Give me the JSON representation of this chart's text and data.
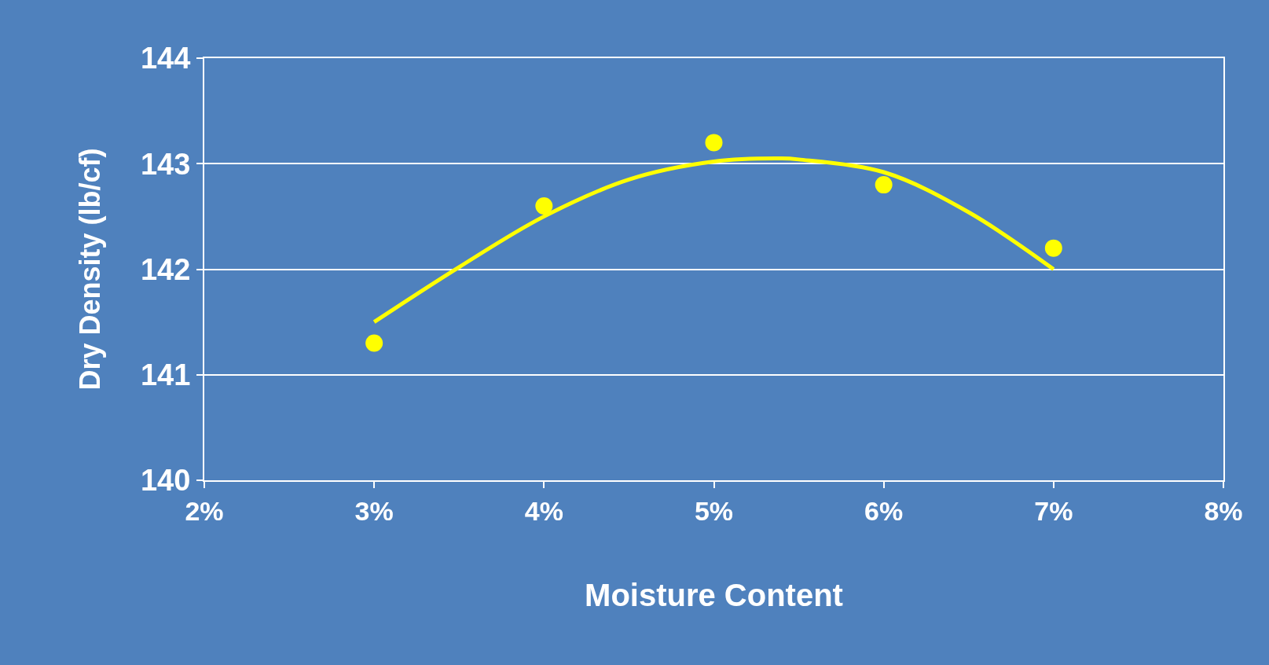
{
  "chart_data": {
    "type": "scatter",
    "xlabel": "Moisture Content",
    "ylabel": "Dry Density (lb/cf)",
    "series": [
      {
        "color": "#ffff00",
        "marker": "circle",
        "x": [
          3,
          4,
          5,
          6,
          7
        ],
        "values": [
          141.3,
          142.6,
          143.2,
          142.8,
          142.2
        ]
      },
      {
        "type": "line",
        "color": "#ffff00",
        "marker": "none",
        "x": [
          3,
          3.5,
          4,
          4.5,
          5,
          5.4,
          5.5,
          6,
          6.5,
          7
        ],
        "values": [
          141.5,
          142.02,
          142.5,
          142.85,
          143.02,
          143.05,
          143.04,
          142.92,
          142.54,
          142.0
        ]
      }
    ],
    "xlim": [
      2,
      8
    ],
    "xticks": [
      {
        "value": 2,
        "label": "2%"
      },
      {
        "value": 3,
        "label": "3%"
      },
      {
        "value": 4,
        "label": "4%"
      },
      {
        "value": 5,
        "label": "5%"
      },
      {
        "value": 6,
        "label": "6%"
      },
      {
        "value": 7,
        "label": "7%"
      },
      {
        "value": 8,
        "label": "8%"
      }
    ],
    "ylim": [
      140,
      144
    ],
    "yticks": [
      140,
      141,
      142,
      143,
      144
    ],
    "grid": "y"
  }
}
